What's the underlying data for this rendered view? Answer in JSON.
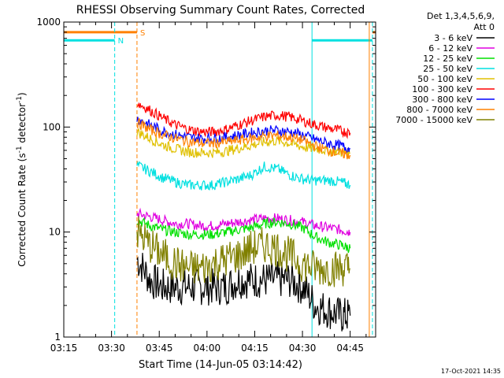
{
  "chart_data": {
    "type": "line",
    "title": "RHESSI Observing Summary Count Rates, Corrected",
    "xlabel": "Start Time (14-Jun-05 03:14:42)",
    "ylabel": "Corrected Count Rate (s⁻¹ detector⁻¹)",
    "ylabel_main": "Corrected Count Rate (s",
    "ylabel_sup1": "-1",
    "ylabel_mid": " detector",
    "ylabel_sup2": "-1",
    "ylabel_end": ")",
    "y_scale": "log",
    "ylim": [
      1,
      1000
    ],
    "xlim": [
      "03:15",
      "04:53"
    ],
    "x_ticks": [
      "03:15",
      "03:30",
      "03:45",
      "04:00",
      "04:15",
      "04:30",
      "04:45"
    ],
    "y_ticks": [
      "1",
      "10",
      "100",
      "1000"
    ],
    "legend_position": "outside-right",
    "legend_header": [
      "Det 1,3,4,5,6,9,",
      "Att 0"
    ],
    "timestamp": "17-Oct-2021 14:35",
    "x": [
      "03:38",
      "03:42",
      "03:46",
      "03:50",
      "03:54",
      "03:58",
      "04:02",
      "04:06",
      "04:10",
      "04:14",
      "04:18",
      "04:22",
      "04:26",
      "04:30",
      "04:34",
      "04:38",
      "04:42",
      "04:45"
    ],
    "series": [
      {
        "name": "3 - 6 keV",
        "color": "#000000",
        "values": [
          5.5,
          3.5,
          3.0,
          3.0,
          3.0,
          3.0,
          3.0,
          3.0,
          3.5,
          3.5,
          3.5,
          3.5,
          3.5,
          3.0,
          2.0,
          1.8,
          1.6,
          1.6
        ]
      },
      {
        "name": "6 - 12 keV",
        "color": "#e000e0",
        "values": [
          15,
          14,
          13,
          12,
          12,
          11.5,
          11.5,
          12,
          12.5,
          13,
          13.5,
          13.5,
          13,
          12.5,
          11.5,
          11,
          10.5,
          10
        ]
      },
      {
        "name": "12 - 25 keV",
        "color": "#00e000",
        "values": [
          13,
          11.5,
          10.5,
          10,
          9.5,
          9.5,
          9.5,
          10,
          10.5,
          11,
          12,
          12.5,
          12,
          11,
          9,
          8,
          7.5,
          7
        ]
      },
      {
        "name": "25 - 50 keV",
        "color": "#00e0e0",
        "values": [
          43,
          38,
          33,
          30,
          28,
          28,
          28,
          30,
          32,
          35,
          42,
          40,
          35,
          32,
          31,
          31,
          30,
          28
        ]
      },
      {
        "name": "50 - 100 keV",
        "color": "#e0c000",
        "values": [
          90,
          78,
          68,
          62,
          58,
          57,
          57,
          59,
          63,
          67,
          72,
          74,
          70,
          65,
          62,
          60,
          58,
          56
        ]
      },
      {
        "name": "100 - 300 keV",
        "color": "#ff0000",
        "values": [
          170,
          145,
          122,
          105,
          95,
          90,
          90,
          95,
          105,
          115,
          125,
          130,
          125,
          115,
          105,
          98,
          92,
          88
        ]
      },
      {
        "name": "300 - 800 keV",
        "color": "#0000ff",
        "values": [
          120,
          105,
          92,
          85,
          80,
          78,
          78,
          80,
          84,
          88,
          92,
          93,
          90,
          84,
          76,
          70,
          66,
          62
        ]
      },
      {
        "name": "800 - 7000 keV",
        "color": "#ff8000",
        "values": [
          110,
          95,
          85,
          78,
          73,
          70,
          70,
          72,
          75,
          78,
          82,
          83,
          80,
          75,
          66,
          60,
          56,
          54
        ]
      },
      {
        "name": "7000 - 15000 keV",
        "color": "#808000",
        "values": [
          10,
          7.5,
          6,
          5,
          4.5,
          4.5,
          5,
          5.5,
          6,
          7,
          7.5,
          7,
          6,
          5,
          4.5,
          4.5,
          4.5,
          4.5
        ]
      }
    ],
    "flags": [
      {
        "label": "S",
        "color": "#ff8000",
        "level": 800,
        "segments": [
          [
            "03:15",
            "03:38"
          ],
          [
            "04:52",
            "04:53"
          ]
        ]
      },
      {
        "label": "N",
        "color": "#00e0e0",
        "level": 670,
        "segments": [
          [
            "03:15",
            "03:31"
          ],
          [
            "04:33",
            "04:52"
          ]
        ]
      }
    ],
    "vlines": [
      {
        "time": "03:15",
        "color": "#00e0e0",
        "style": "solid"
      },
      {
        "time": "03:31",
        "color": "#00e0e0",
        "style": "dashed"
      },
      {
        "time": "03:38",
        "color": "#ff8000",
        "style": "dashed"
      },
      {
        "time": "04:33",
        "color": "#00e0e0",
        "style": "solid"
      },
      {
        "time": "04:51",
        "color": "#ff8000",
        "style": "solid"
      },
      {
        "time": "04:52",
        "color": "#00e0e0",
        "style": "dashed"
      }
    ]
  }
}
